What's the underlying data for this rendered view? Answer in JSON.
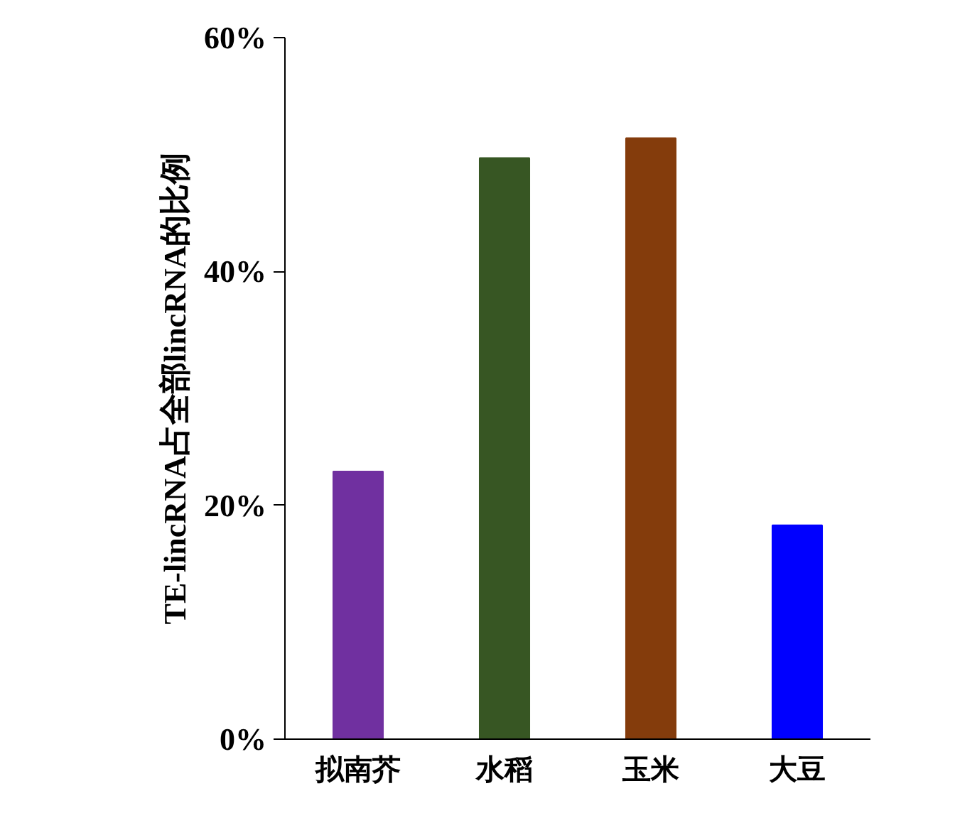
{
  "chart_data": {
    "type": "bar",
    "ylabel": "TE-lincRNA占全部lincRNA的比例",
    "categories": [
      "拟南芥",
      "水稻",
      "玉米",
      "大豆"
    ],
    "values": [
      22.9,
      49.7,
      51.4,
      18.3
    ],
    "colors": [
      "#7030a0",
      "#375623",
      "#843c0c",
      "#0000ff"
    ],
    "ylim": [
      0,
      60
    ],
    "yticks": [
      {
        "value": 0,
        "label": "0%"
      },
      {
        "value": 20,
        "label": "20%"
      },
      {
        "value": 40,
        "label": "40%"
      },
      {
        "value": 60,
        "label": "60%"
      }
    ],
    "grid": false
  }
}
